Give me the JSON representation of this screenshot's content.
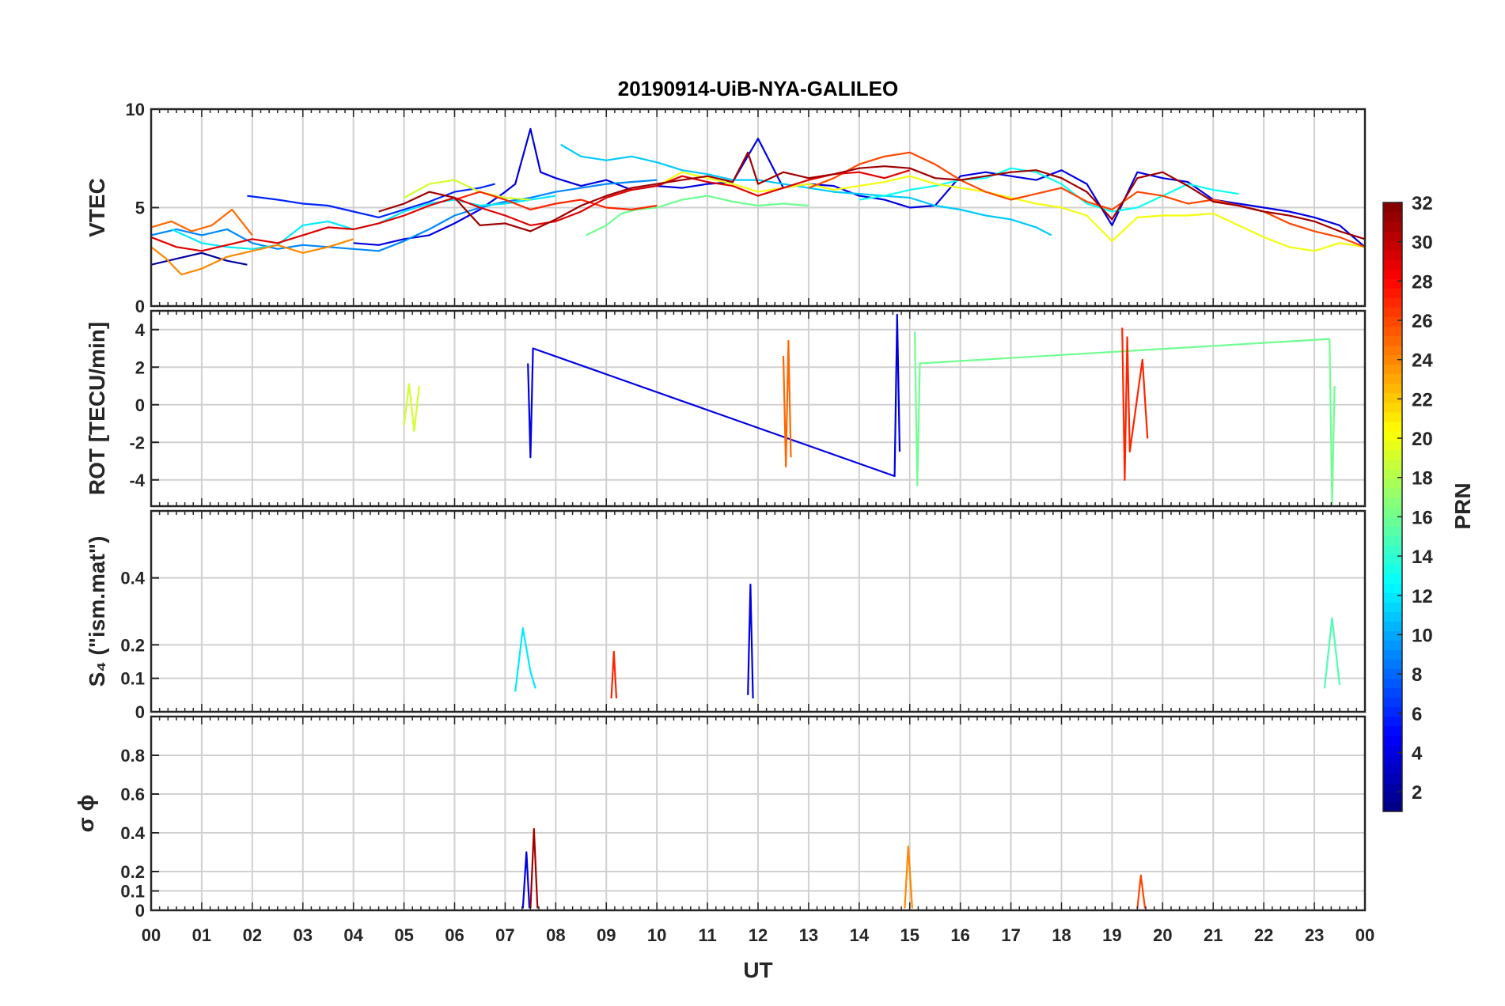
{
  "chart_data": {
    "type": "line",
    "title": "20190914-UiB-NYA-GALILEO",
    "xlabel": "UT",
    "x_tick_labels": [
      "00",
      "01",
      "02",
      "03",
      "04",
      "05",
      "06",
      "07",
      "08",
      "09",
      "10",
      "11",
      "12",
      "13",
      "14",
      "15",
      "16",
      "17",
      "18",
      "19",
      "20",
      "21",
      "22",
      "23",
      "00"
    ],
    "xlim": [
      0,
      24
    ],
    "colormap": "jet",
    "colorbar": {
      "label": "PRN",
      "range": [
        1,
        32
      ],
      "tick_labels": [
        "2",
        "4",
        "6",
        "8",
        "10",
        "12",
        "14",
        "16",
        "18",
        "20",
        "22",
        "24",
        "26",
        "28",
        "30",
        "32"
      ]
    },
    "panels": [
      {
        "name": "vtec",
        "ylabel": "VTEC",
        "ylim": [
          0,
          10
        ],
        "y_tick_labels": [
          "0",
          "5",
          "10"
        ],
        "series": [
          {
            "prn": 2,
            "x": [
              0,
              0.5,
              1,
              1.5,
              1.9
            ],
            "y": [
              2.1,
              2.4,
              2.7,
              2.3,
              2.1
            ]
          },
          {
            "prn": 6,
            "x": [
              1.9,
              2.5,
              3,
              3.5,
              4,
              4.5,
              5,
              5.5,
              6,
              6.5,
              6.8
            ],
            "y": [
              5.6,
              5.4,
              5.2,
              5.1,
              4.8,
              4.5,
              4.9,
              5.3,
              5.8,
              6.0,
              6.2
            ]
          },
          {
            "prn": 4,
            "x": [
              4,
              4.5,
              5,
              5.5,
              6,
              6.5,
              7,
              7.2,
              7.5,
              7.7,
              8,
              8.5,
              9,
              9.5,
              10,
              10.5,
              11,
              11.5,
              12,
              12.5,
              13,
              13.5,
              14,
              14.5,
              15,
              15.5,
              16,
              16.5,
              17,
              17.5,
              18,
              18.5,
              19,
              19.5,
              20,
              20.5,
              21,
              21.5,
              22,
              22.5,
              23,
              23.5,
              24
            ],
            "y": [
              3.2,
              3.1,
              3.4,
              3.6,
              4.2,
              4.9,
              5.8,
              6.2,
              9.0,
              6.8,
              6.5,
              6.1,
              6.4,
              5.9,
              6.1,
              6.0,
              6.2,
              6.3,
              8.5,
              6.0,
              6.2,
              6.1,
              5.6,
              5.4,
              5.0,
              5.1,
              6.6,
              6.8,
              6.6,
              6.4,
              6.9,
              6.2,
              4.1,
              6.8,
              6.5,
              6.3,
              5.4,
              5.2,
              5.0,
              4.8,
              4.5,
              4.1,
              3.0
            ]
          },
          {
            "prn": 9,
            "x": [
              0,
              0.5,
              1,
              1.5,
              2,
              2.5,
              3,
              3.5,
              4,
              4.5,
              5,
              5.5,
              6,
              6.5,
              7,
              7.5,
              8,
              8.5,
              9,
              9.5,
              10
            ],
            "y": [
              3.6,
              3.9,
              3.6,
              3.9,
              3.2,
              2.9,
              3.1,
              3.0,
              2.9,
              2.8,
              3.3,
              3.9,
              4.6,
              5.0,
              5.3,
              5.5,
              5.8,
              6.0,
              6.2,
              6.3,
              6.4
            ]
          },
          {
            "prn": 11,
            "x": [
              8.1,
              8.5,
              9,
              9.5,
              10,
              10.5,
              11,
              11.5,
              12,
              12.5,
              13,
              13.5,
              14,
              14.5,
              15,
              15.5,
              16,
              16.5,
              17,
              17.5,
              17.8
            ],
            "y": [
              8.2,
              7.6,
              7.4,
              7.6,
              7.3,
              6.9,
              6.7,
              6.4,
              6.4,
              6.2,
              6.0,
              5.8,
              5.7,
              5.6,
              5.5,
              5.1,
              4.9,
              4.6,
              4.4,
              4.0,
              3.6
            ]
          },
          {
            "prn": 12,
            "x": [
              0.4,
              1,
              1.5,
              2,
              2.5,
              3,
              3.5,
              4,
              4.5,
              5,
              5.5,
              6,
              6.5,
              7,
              7.5,
              8
            ],
            "y": [
              3.9,
              3.2,
              3.0,
              2.9,
              3.1,
              4.1,
              4.3,
              3.9,
              4.2,
              4.8,
              5.2,
              5.4,
              5.1,
              5.2,
              5.4,
              5.6
            ]
          },
          {
            "prn": 13,
            "x": [
              14,
              14.5,
              15,
              15.5,
              16,
              16.5,
              17,
              17.5,
              18,
              18.5,
              19,
              19.5,
              20,
              20.5,
              21,
              21.5
            ],
            "y": [
              5.4,
              5.6,
              5.9,
              6.1,
              6.4,
              6.5,
              7.0,
              6.8,
              6.2,
              5.2,
              4.8,
              5.0,
              5.6,
              6.2,
              5.9,
              5.7
            ]
          },
          {
            "prn": 16,
            "x": [
              8.6,
              9,
              9.3,
              9.6,
              10,
              10.5,
              11,
              11.5,
              12,
              12.5,
              13
            ],
            "y": [
              3.6,
              4.1,
              4.7,
              4.9,
              5.0,
              5.4,
              5.6,
              5.3,
              5.1,
              5.2,
              5.1
            ]
          },
          {
            "prn": 19,
            "x": [
              5,
              5.5,
              6,
              6.5,
              7,
              7.5
            ],
            "y": [
              5.5,
              6.2,
              6.4,
              5.8,
              5.5,
              5.4
            ]
          },
          {
            "prn": 20,
            "x": [
              10,
              10.5,
              11,
              11.5,
              12,
              12.5,
              13,
              13.5,
              14,
              14.5,
              15,
              15.5,
              16,
              16.5,
              17,
              17.5,
              18,
              18.5,
              19,
              19.5,
              20,
              20.5,
              21,
              21.5,
              22,
              22.5,
              23,
              23.5,
              24
            ],
            "y": [
              6.1,
              6.8,
              6.5,
              6.2,
              5.8,
              6.0,
              6.2,
              5.9,
              6.1,
              6.3,
              6.6,
              6.2,
              6.0,
              5.8,
              5.5,
              5.2,
              5.0,
              4.6,
              3.3,
              4.5,
              4.6,
              4.6,
              4.7,
              4.1,
              3.5,
              3.0,
              2.8,
              3.2,
              3.0
            ]
          },
          {
            "prn": 24,
            "x": [
              0,
              0.3,
              0.6,
              1,
              1.5,
              2,
              2.5,
              3,
              3.5,
              4
            ],
            "y": [
              3.0,
              2.4,
              1.6,
              1.9,
              2.5,
              2.8,
              3.1,
              2.7,
              3.0,
              3.4
            ]
          },
          {
            "prn": 25,
            "x": [
              0,
              0.4,
              0.8,
              1.2,
              1.6,
              2
            ],
            "y": [
              4.0,
              4.3,
              3.8,
              4.1,
              4.9,
              3.6
            ]
          },
          {
            "prn": 26,
            "x": [
              13,
              13.5,
              14,
              14.5,
              15,
              15.5,
              16,
              16.5,
              17,
              17.5,
              18,
              18.5,
              19,
              19.5,
              20,
              20.5,
              21,
              21.5,
              22,
              22.5,
              23,
              23.5,
              24
            ],
            "y": [
              6.0,
              6.5,
              7.2,
              7.6,
              7.8,
              7.2,
              6.4,
              5.8,
              5.4,
              5.7,
              6.0,
              5.3,
              4.9,
              5.8,
              5.6,
              5.2,
              5.4,
              5.1,
              4.8,
              4.2,
              3.8,
              3.5,
              3.0
            ]
          },
          {
            "prn": 27,
            "x": [
              6,
              6.5,
              7,
              7.5,
              8,
              8.5,
              9,
              9.5,
              10
            ],
            "y": [
              5.4,
              5.8,
              5.4,
              4.9,
              5.2,
              5.4,
              5.0,
              4.9,
              5.1
            ]
          },
          {
            "prn": 29,
            "x": [
              0,
              0.5,
              1,
              1.5,
              2,
              2.5,
              3,
              3.5,
              4,
              4.5,
              5,
              5.5,
              6,
              6.5,
              7,
              7.5,
              8,
              8.5,
              9,
              9.5,
              10,
              10.5,
              11,
              11.5,
              12,
              12.5,
              13,
              13.5,
              14,
              14.5,
              15
            ],
            "y": [
              3.5,
              3.0,
              2.8,
              3.1,
              3.4,
              3.2,
              3.6,
              4.0,
              3.9,
              4.2,
              4.6,
              5.1,
              5.5,
              5.0,
              4.6,
              4.1,
              4.3,
              4.8,
              5.5,
              5.9,
              6.1,
              6.6,
              6.3,
              6.1,
              5.6,
              6.0,
              6.4,
              6.7,
              6.8,
              6.5,
              6.9
            ]
          },
          {
            "prn": 31,
            "x": [
              4.5,
              5,
              5.5,
              6,
              6.5,
              7,
              7.5,
              8,
              8.5,
              9,
              9.5,
              10,
              10.5,
              11,
              11.5,
              11.8,
              12,
              12.5,
              13,
              13.5,
              14,
              14.5,
              15,
              15.5,
              16,
              16.5,
              17,
              17.5,
              18,
              18.5,
              19,
              19.5,
              20,
              20.5,
              21,
              21.5,
              22,
              22.5,
              23,
              23.5,
              24
            ],
            "y": [
              4.8,
              5.2,
              5.8,
              5.5,
              4.1,
              4.2,
              3.8,
              4.4,
              5.1,
              5.6,
              6.0,
              6.2,
              6.4,
              6.6,
              6.3,
              7.8,
              6.2,
              6.8,
              6.5,
              6.7,
              7.0,
              7.1,
              7.0,
              6.5,
              6.4,
              6.6,
              6.8,
              6.9,
              6.5,
              5.8,
              4.4,
              6.5,
              6.8,
              6.1,
              5.3,
              5.1,
              4.8,
              4.6,
              4.3,
              3.8,
              3.4
            ]
          }
        ]
      },
      {
        "name": "rot",
        "ylabel": "ROT [TECU/min]",
        "ylim": [
          -5.4,
          5
        ],
        "y_tick_labels": [
          "-4",
          "-2",
          "0",
          "2",
          "4"
        ],
        "series": [
          {
            "prn": 4,
            "x": [
              7.45,
              7.5,
              7.55,
              14.7,
              14.75,
              14.8
            ],
            "y": [
              2.2,
              -2.8,
              3.0,
              -3.8,
              4.8,
              -2.5
            ]
          },
          {
            "prn": 16,
            "x": [
              15.1,
              15.15,
              15.2,
              23.3,
              23.35,
              23.4
            ],
            "y": [
              3.9,
              -4.3,
              2.2,
              3.5,
              -5.3,
              1.0
            ]
          },
          {
            "prn": 19,
            "x": [
              5.0,
              5.1,
              5.2,
              5.3
            ],
            "y": [
              -1.1,
              1.1,
              -1.4,
              1.0
            ]
          },
          {
            "prn": 25,
            "x": [
              12.5,
              12.55,
              12.6,
              12.65
            ],
            "y": [
              2.6,
              -3.3,
              3.4,
              -2.8
            ]
          },
          {
            "prn": 27,
            "x": [
              19.2,
              19.25,
              19.3,
              19.35,
              19.6,
              19.7
            ],
            "y": [
              4.1,
              -4.0,
              3.6,
              -2.5,
              2.4,
              -1.8
            ]
          }
        ]
      },
      {
        "name": "s4",
        "ylabel": "S₄ (\"ism.mat\")",
        "ylim": [
          0,
          0.6
        ],
        "y_tick_labels": [
          "0",
          "0.1",
          "0.2",
          "0.4"
        ],
        "series": [
          {
            "prn": 4,
            "x": [
              11.8,
              11.85,
              11.9
            ],
            "y": [
              0.05,
              0.38,
              0.04
            ]
          },
          {
            "prn": 12,
            "x": [
              7.2,
              7.35,
              7.5,
              7.6
            ],
            "y": [
              0.06,
              0.25,
              0.12,
              0.07
            ]
          },
          {
            "prn": 15,
            "x": [
              23.2,
              23.35,
              23.5
            ],
            "y": [
              0.07,
              0.28,
              0.08
            ]
          },
          {
            "prn": 27,
            "x": [
              9.1,
              9.15,
              9.2
            ],
            "y": [
              0.04,
              0.18,
              0.04
            ]
          }
        ]
      },
      {
        "name": "sigma_phi",
        "ylabel": "σ ϕ",
        "ylim": [
          0,
          1
        ],
        "y_tick_labels": [
          "0",
          "0.1",
          "0.2",
          "0.4",
          "0.6",
          "0.8"
        ],
        "series": [
          {
            "prn": 4,
            "x": [
              7.35,
              7.42,
              7.48
            ],
            "y": [
              0.01,
              0.3,
              0.01
            ]
          },
          {
            "prn": 31,
            "x": [
              7.5,
              7.57,
              7.64
            ],
            "y": [
              0.01,
              0.42,
              0.01
            ]
          },
          {
            "prn": 24,
            "x": [
              14.9,
              14.97,
              15.05
            ],
            "y": [
              0.01,
              0.33,
              0.01
            ]
          },
          {
            "prn": 26,
            "x": [
              19.5,
              19.57,
              19.65
            ],
            "y": [
              0.01,
              0.18,
              0.01
            ]
          }
        ]
      }
    ]
  }
}
